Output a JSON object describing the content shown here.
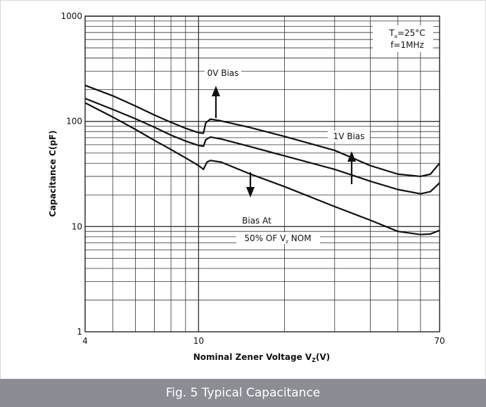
{
  "caption": "Fig. 5 Typical Capacitance",
  "chart_data": {
    "type": "line",
    "x_scale": "log",
    "y_scale": "log",
    "xlim": [
      4,
      70
    ],
    "ylim": [
      1,
      1000
    ],
    "x_ticks": [
      "4",
      "10",
      "70"
    ],
    "x_tick_values": [
      4,
      10,
      70
    ],
    "y_ticks": [
      "1",
      "10",
      "100",
      "1000"
    ],
    "y_tick_values": [
      1,
      10,
      100,
      1000
    ],
    "xlabel_main": "Nominal Zener Voltage  V",
    "xlabel_sub": "Z",
    "xlabel_tail": "(V)",
    "ylabel": "Capacitance  C(pF)",
    "grid": true,
    "conditions": {
      "line1_main": "T",
      "line1_sub": "a",
      "line1_tail": "=25°C",
      "line2": "f=1MHz"
    },
    "annotations": {
      "zero_bias": "0V Bias",
      "one_bias": "1V Bias",
      "half_line1": "Bias  At",
      "half_line2_main": "50% OF V",
      "half_line2_sub": "z",
      "half_line2_tail": " NOM"
    },
    "series": [
      {
        "name": "0V Bias",
        "points": [
          [
            4,
            220
          ],
          [
            5,
            175
          ],
          [
            6,
            140
          ],
          [
            7,
            115
          ],
          [
            8,
            98
          ],
          [
            9,
            86
          ],
          [
            10,
            78
          ],
          [
            10.4,
            77
          ],
          [
            10.6,
            97
          ],
          [
            11,
            105
          ],
          [
            12,
            101
          ],
          [
            15,
            88
          ],
          [
            20,
            72
          ],
          [
            30,
            53
          ],
          [
            40,
            38
          ],
          [
            50,
            31.5
          ],
          [
            60,
            30
          ],
          [
            65,
            31.5
          ],
          [
            70,
            40
          ]
        ]
      },
      {
        "name": "1V Bias",
        "points": [
          [
            4,
            165
          ],
          [
            5,
            130
          ],
          [
            6,
            106
          ],
          [
            7,
            88
          ],
          [
            8,
            74
          ],
          [
            9,
            65
          ],
          [
            10,
            59
          ],
          [
            10.4,
            58
          ],
          [
            10.6,
            67
          ],
          [
            11,
            71
          ],
          [
            12,
            68
          ],
          [
            15,
            58
          ],
          [
            20,
            47
          ],
          [
            30,
            35
          ],
          [
            40,
            27
          ],
          [
            50,
            22.5
          ],
          [
            60,
            20.5
          ],
          [
            65,
            21.5
          ],
          [
            70,
            26
          ]
        ]
      },
      {
        "name": "Bias At 50% OF Vz NOM",
        "points": [
          [
            4,
            150
          ],
          [
            5,
            110
          ],
          [
            6,
            84
          ],
          [
            7,
            66
          ],
          [
            8,
            54
          ],
          [
            9,
            45
          ],
          [
            10,
            38
          ],
          [
            10.4,
            35
          ],
          [
            10.7,
            41
          ],
          [
            11,
            42.5
          ],
          [
            12,
            41
          ],
          [
            15,
            32
          ],
          [
            20,
            24
          ],
          [
            30,
            15.5
          ],
          [
            40,
            11.5
          ],
          [
            50,
            9
          ],
          [
            60,
            8.4
          ],
          [
            65,
            8.5
          ],
          [
            70,
            9.2
          ]
        ]
      }
    ]
  }
}
